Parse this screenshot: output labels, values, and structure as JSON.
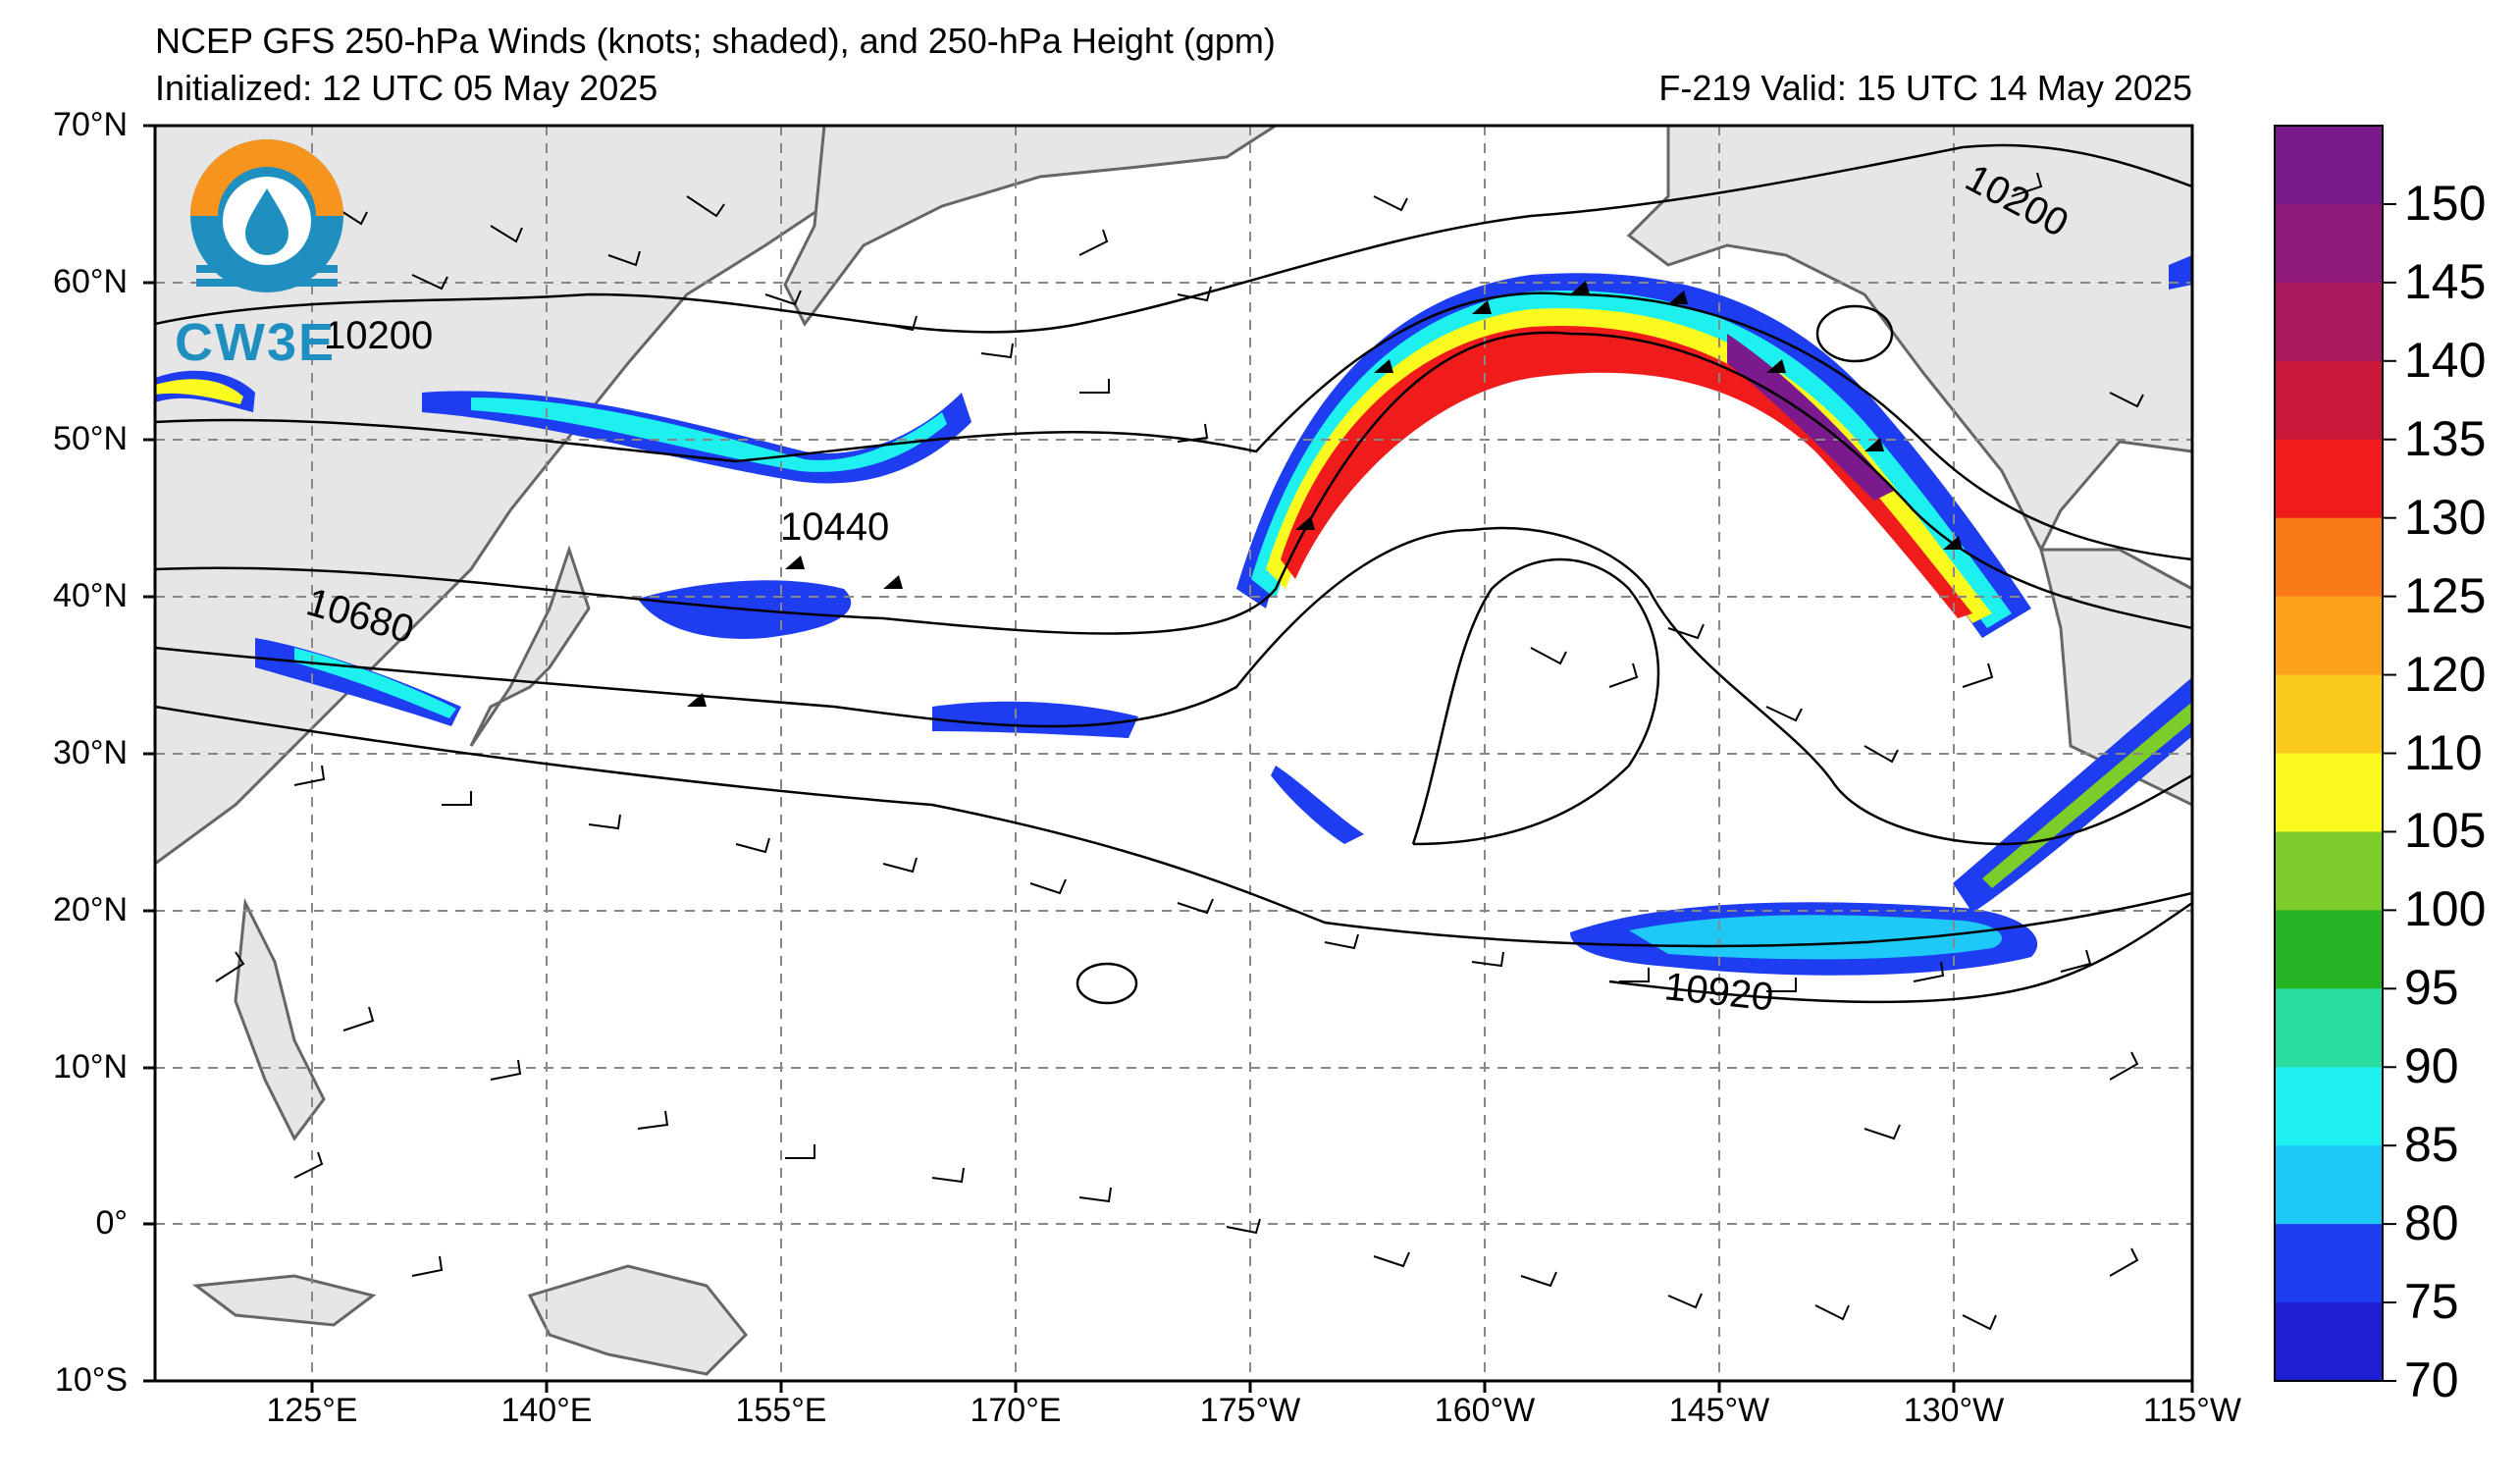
{
  "title": "NCEP GFS 250-hPa Winds (knots; shaded), and 250-hPa Height (gpm)",
  "initialized": "Initialized: 12 UTC 05 May 2025",
  "valid": "F-219  Valid: 15 UTC 14 May 2025",
  "logo_text": "CW3E",
  "lat_labels": [
    "70°N",
    "60°N",
    "50°N",
    "40°N",
    "30°N",
    "20°N",
    "10°N",
    "0°",
    "10°S"
  ],
  "lon_labels": [
    "125°E",
    "140°E",
    "155°E",
    "170°E",
    "175°W",
    "160°W",
    "145°W",
    "130°W",
    "115°W"
  ],
  "contour_labels": [
    "10200",
    "10200",
    "10440",
    "10680",
    "10920"
  ],
  "colorbar": {
    "labels": [
      "150",
      "145",
      "140",
      "135",
      "130",
      "125",
      "120",
      "110",
      "105",
      "100",
      "95",
      "90",
      "85",
      "80",
      "75",
      "70"
    ],
    "colors": [
      "#7a1a8c",
      "#8e1a7a",
      "#a8195e",
      "#c8183a",
      "#f01c1c",
      "#fa7a1a",
      "#fba21a",
      "#f9c91e",
      "#fafa1e",
      "#7ccd2a",
      "#24b424",
      "#28dca0",
      "#1ef0f0",
      "#1ec8f8",
      "#1e3cf0",
      "#1e1ed2"
    ]
  },
  "colors": {
    "land": "#e6e6e6",
    "coast": "#666666",
    "grid": "#888888",
    "contour": "#000000"
  }
}
